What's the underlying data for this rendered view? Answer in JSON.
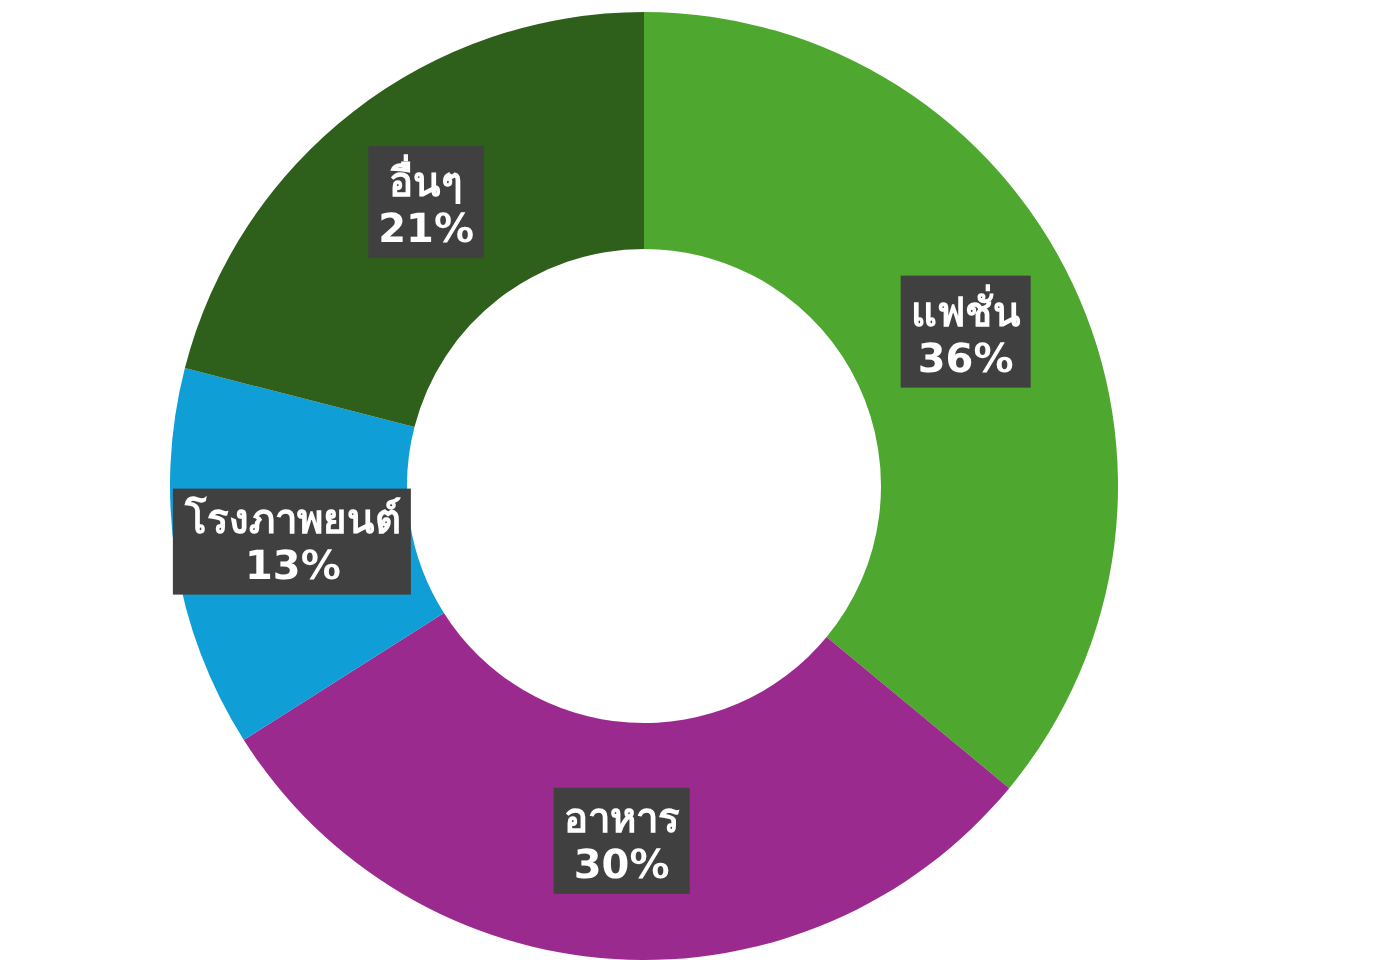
{
  "chart_data": {
    "type": "donut",
    "categories": [
      "แฟชั่น",
      "อาหาร",
      "โรงภาพยนต์",
      "อื่นๆ"
    ],
    "values": [
      36,
      30,
      13,
      21
    ],
    "value_labels": [
      "36%",
      "30%",
      "13%",
      "21%"
    ],
    "colors": [
      "#4ea72e",
      "#9a2a8e",
      "#0f9ed5",
      "#2e5f1b"
    ],
    "legend": false
  }
}
